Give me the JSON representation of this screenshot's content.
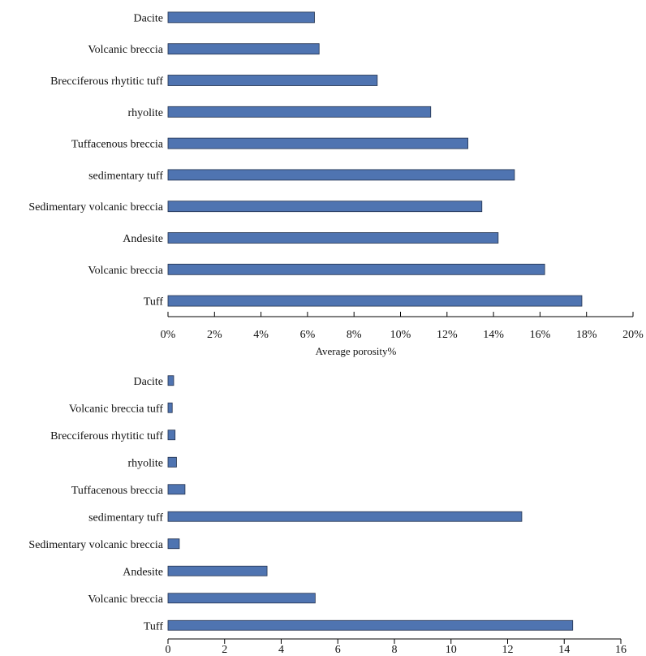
{
  "chart_data": [
    {
      "type": "bar",
      "orientation": "horizontal",
      "categories": [
        "Dacite",
        "Volcanic  breccia",
        "Brecciferous rhytitic tuff",
        "rhyolite",
        "Tuffacenous breccia",
        "sedimentary tuff",
        "Sedimentary volcanic breccia",
        "Andesite",
        "Volcanic breccia",
        "Tuff"
      ],
      "values": [
        6.3,
        6.5,
        9.0,
        11.3,
        12.9,
        14.9,
        13.5,
        14.2,
        16.2,
        17.8
      ],
      "ticks": [
        0,
        2,
        4,
        6,
        8,
        10,
        12,
        14,
        16,
        18,
        20
      ],
      "tick_labels": [
        "0%",
        "2%",
        "4%",
        "6%",
        "8%",
        "10%",
        "12%",
        "14%",
        "16%",
        "18%",
        "20%"
      ],
      "xlim": [
        0,
        20
      ],
      "xlabel": "Average porosity%",
      "ylabel": "",
      "title": "",
      "color": "#4f74b1"
    },
    {
      "type": "bar",
      "orientation": "horizontal",
      "categories": [
        "Dacite",
        "Volcanic  breccia tuff",
        "Brecciferous rhytitic tuff",
        "rhyolite",
        "Tuffacenous breccia",
        "sedimentary tuff",
        "Sedimentary volcanic breccia",
        "Andesite",
        "Volcanic breccia",
        "Tuff"
      ],
      "values": [
        0.2,
        0.15,
        0.25,
        0.3,
        0.6,
        12.5,
        0.4,
        3.5,
        5.2,
        14.3
      ],
      "ticks": [
        0,
        2,
        4,
        6,
        8,
        10,
        12,
        14,
        16
      ],
      "tick_labels": [
        "0",
        "2",
        "4",
        "6",
        "8",
        "10",
        "12",
        "14",
        "16"
      ],
      "xlim": [
        0,
        16
      ],
      "xlabel": "",
      "ylabel": "",
      "title": "",
      "color": "#4f74b1"
    }
  ]
}
